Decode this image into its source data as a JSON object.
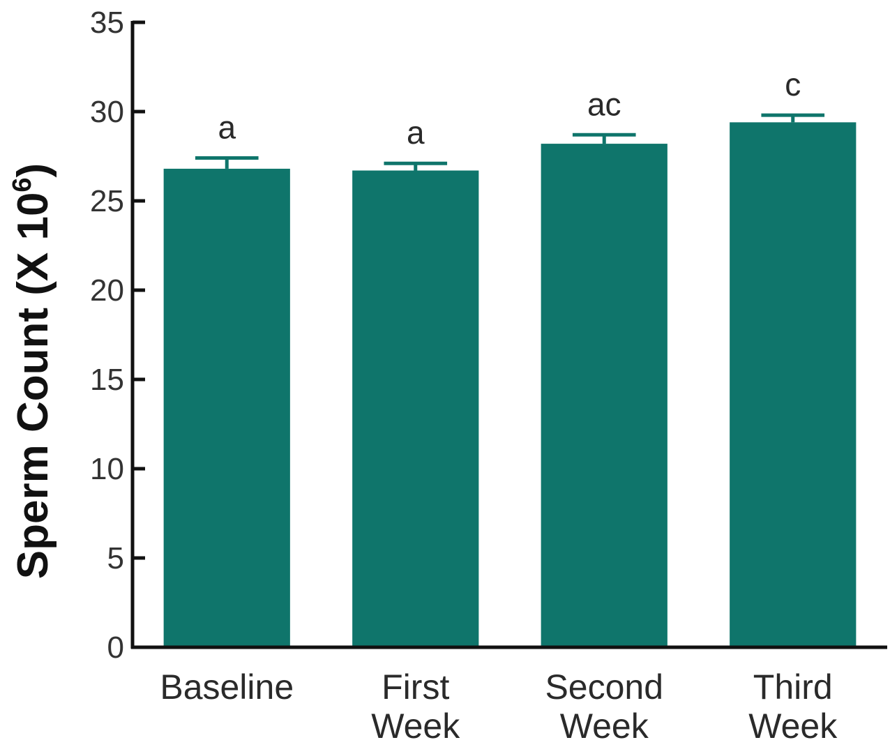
{
  "chart_data": {
    "type": "bar",
    "ylabel": "Sperm Count (X 10",
    "ylabel_superscript": "6",
    "ylabel_suffix": ")",
    "ylim": [
      0,
      35
    ],
    "yticks": [
      0,
      5,
      10,
      15,
      20,
      25,
      30,
      35
    ],
    "categories": [
      [
        "Baseline"
      ],
      [
        "First",
        "Week"
      ],
      [
        "Second",
        "Week"
      ],
      [
        "Third",
        "Week"
      ]
    ],
    "values": [
      26.8,
      26.7,
      28.2,
      29.4
    ],
    "errors": [
      0.6,
      0.4,
      0.5,
      0.4
    ],
    "significance_labels": [
      "a",
      "a",
      "ac",
      "c"
    ],
    "bar_color": "#0f756b",
    "grid": false,
    "legend": "none"
  }
}
